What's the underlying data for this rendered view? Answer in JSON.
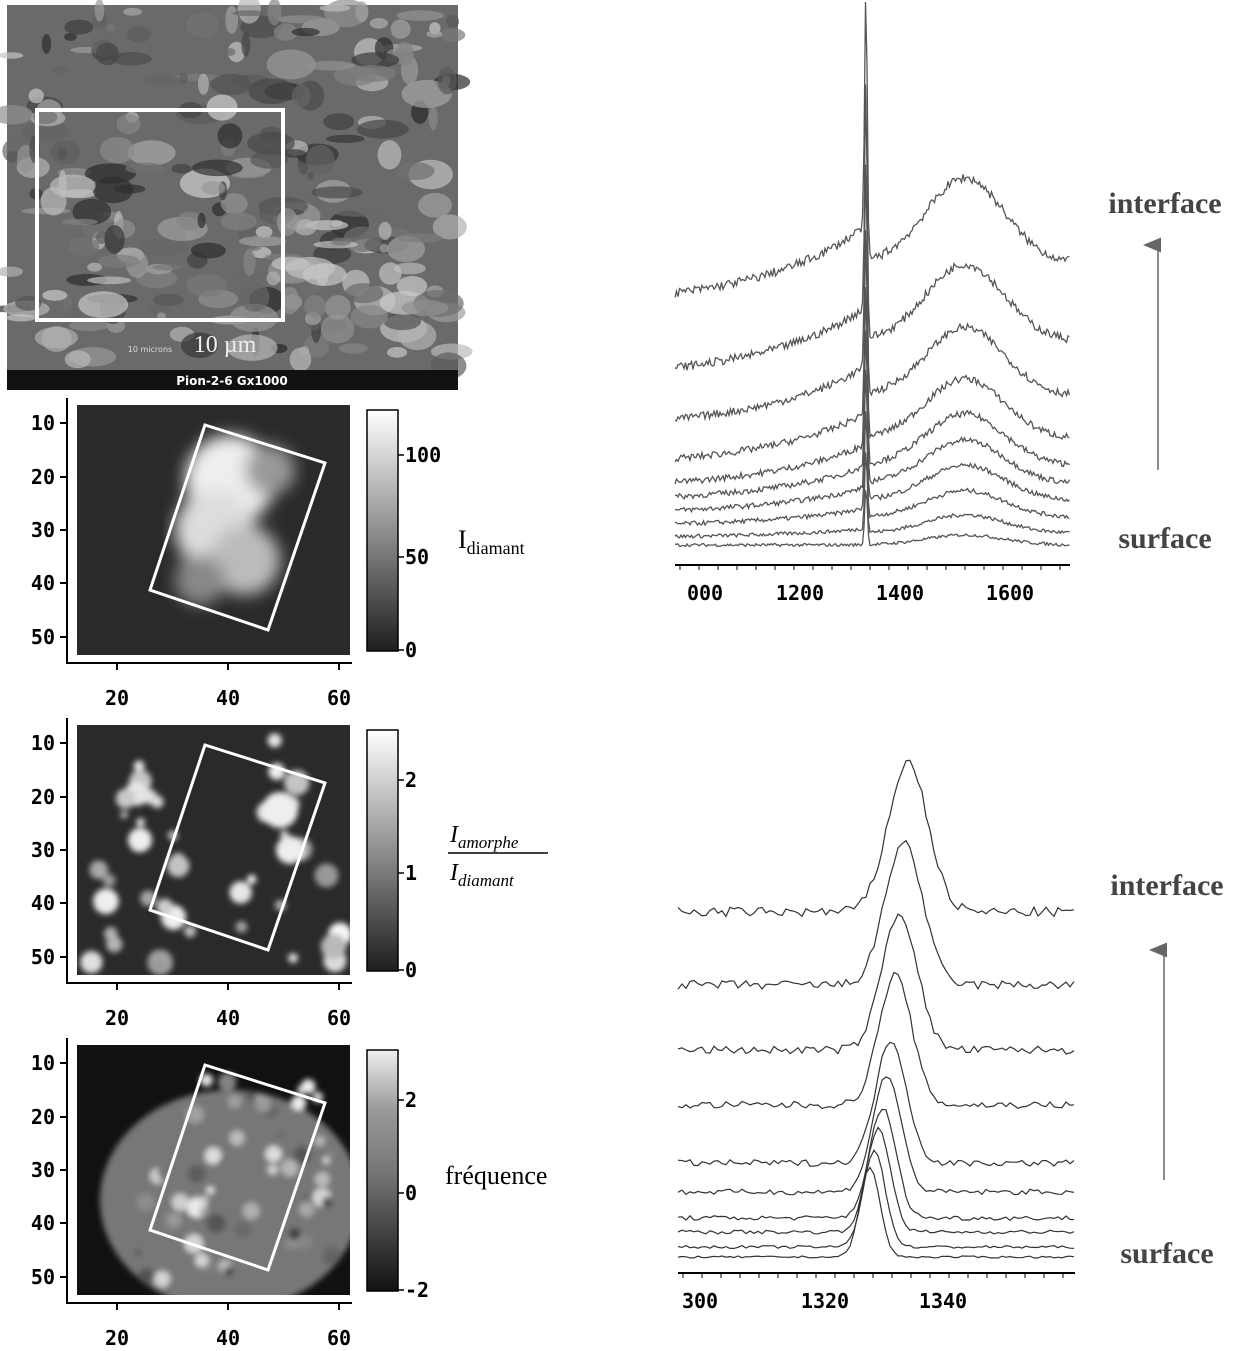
{
  "sem": {
    "scale": "10 µm",
    "micron_label": "10 microns",
    "caption": "Pion-2-6 Gx1000"
  },
  "maps": [
    {
      "yticks": [
        "10",
        "20",
        "30",
        "40",
        "50"
      ],
      "xticks": [
        "20",
        "40",
        "60"
      ],
      "colorbar_ticks": [
        "100",
        "50",
        "0"
      ],
      "label_main": "I",
      "label_sub": "diamant"
    },
    {
      "yticks": [
        "10",
        "20",
        "30",
        "40",
        "50"
      ],
      "xticks": [
        "20",
        "40",
        "60"
      ],
      "colorbar_ticks": [
        "2",
        "1",
        "0"
      ],
      "num_main": "I",
      "num_sub": "amorphe",
      "den_main": "I",
      "den_sub": "diamant"
    },
    {
      "yticks": [
        "10",
        "20",
        "30",
        "40",
        "50"
      ],
      "xticks": [
        "20",
        "40",
        "60"
      ],
      "colorbar_ticks": [
        "2",
        "0",
        "-2"
      ],
      "label": "fréquence"
    }
  ],
  "spectra": [
    {
      "xticks": [
        "000",
        "1200",
        "1400",
        "1600"
      ],
      "top_label": "interface",
      "bottom_label": "surface"
    },
    {
      "xticks": [
        "300",
        "1320",
        "1340"
      ],
      "top_label": "interface",
      "bottom_label": "surface"
    }
  ]
}
